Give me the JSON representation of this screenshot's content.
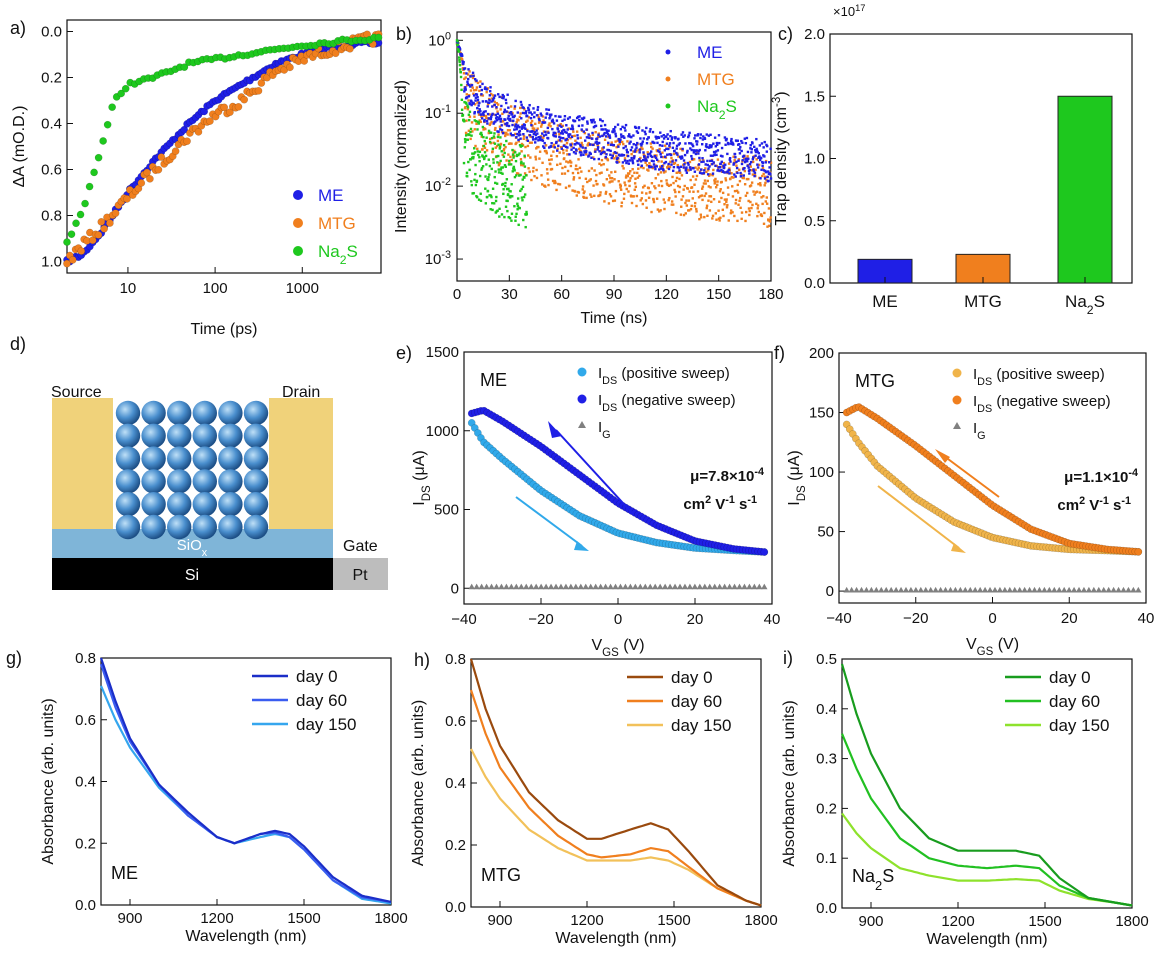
{
  "colors": {
    "ME": "#1f1fe6",
    "MTG": "#f07f1e",
    "Na2S": "#1ec81e",
    "ME_pos": "#31a9ea",
    "MTG_pos": "#f0b44a",
    "IG": "#808080",
    "ME_d0": "#1b2ec8",
    "ME_d60": "#3a5cf0",
    "ME_d150": "#35a6ee",
    "MTG_d0": "#9a4a0e",
    "MTG_d60": "#f07f1e",
    "MTG_d150": "#f2c15a",
    "Na_d0": "#189c1e",
    "Na_d60": "#22c022",
    "Na_d150": "#8ee22c",
    "gold": "#f0d27a",
    "sio": "#7fb5d8",
    "si": "#000000",
    "pt": "#bdbdbd"
  },
  "panels": {
    "a": {
      "label": "a)",
      "xlabel": "Time (ps)",
      "ylabel": "ΔA (mO.D.)",
      "xticks": [
        "10",
        "100",
        "1000"
      ],
      "yticks": [
        "0.0",
        "0.2",
        "0.4",
        "0.6",
        "0.8",
        "1.0"
      ],
      "legend": [
        "ME",
        "MTG",
        "Na",
        "2",
        "S"
      ]
    },
    "b": {
      "label": "b)",
      "xlabel": "Time (ns)",
      "ylabel": "Intensity (normalized)",
      "xticks": [
        "0",
        "30",
        "60",
        "90",
        "120",
        "150",
        "180"
      ],
      "ytick_base": "10",
      "yticks_exp": [
        "0",
        "-1",
        "-2",
        "-3"
      ],
      "legend": [
        "ME",
        "MTG",
        "Na",
        "2",
        "S"
      ]
    },
    "c": {
      "label": "c)",
      "ylabel": "Trap density (cm",
      "ylabel_sup": "-3",
      "ylabel_end": ")",
      "scale": "×10",
      "scale_exp": "17",
      "yticks": [
        "0.0",
        "0.5",
        "1.0",
        "1.5",
        "2.0"
      ],
      "categories": [
        "ME",
        "MTG",
        "Na"
      ],
      "cat_sub": "2",
      "cat_end": "S"
    },
    "d": {
      "label": "d)",
      "source": "Source",
      "drain": "Drain",
      "sio": "SiO",
      "sio_sub": "x",
      "gate": "Gate",
      "si": "Si",
      "pt": "Pt"
    },
    "e": {
      "label": "e)",
      "name": "ME",
      "xlabel": "V",
      "xlabel_sub": "GS",
      "xlabel_end": " (V)",
      "ylabel": "I",
      "ylabel_sub": "DS",
      "ylabel_end": " (μA)",
      "xticks": [
        "−40",
        "−20",
        "0",
        "20",
        "40"
      ],
      "yticks": [
        "0",
        "500",
        "1000",
        "1500"
      ],
      "legend": [
        "I",
        "DS",
        " (positive sweep)",
        " (negative sweep)",
        "G"
      ],
      "mu1": "μ=7.8×10",
      "mu1_exp": "-4",
      "mu2": "cm",
      "mu2_exp": "2",
      "mu2_mid": " V",
      "mu2_exp2": "-1",
      "mu2_end": " s",
      "mu2_exp3": "-1"
    },
    "f": {
      "label": "f)",
      "name": "MTG",
      "xlabel": "V",
      "xlabel_sub": "GS",
      "xlabel_end": " (V)",
      "ylabel": "I",
      "ylabel_sub": "DS",
      "ylabel_end": " (μA)",
      "xticks": [
        "−40",
        "−20",
        "0",
        "20",
        "40"
      ],
      "yticks": [
        "0",
        "50",
        "100",
        "150",
        "200"
      ],
      "legend": [
        "I",
        "DS",
        " (positive sweep)",
        " (negative sweep)",
        "G"
      ],
      "mu1": "μ=1.1×10",
      "mu1_exp": "-4",
      "mu2": "cm",
      "mu2_exp": "2",
      "mu2_mid": " V",
      "mu2_exp2": "-1",
      "mu2_end": " s",
      "mu2_exp3": "-1"
    },
    "g": {
      "label": "g)",
      "name": "ME",
      "xlabel": "Wavelength (nm)",
      "ylabel": "Absorbance (arb. units)",
      "xticks": [
        "900",
        "1200",
        "1500",
        "1800"
      ],
      "yticks": [
        "0.0",
        "0.2",
        "0.4",
        "0.6",
        "0.8"
      ],
      "legend": [
        "day 0",
        "day 60",
        "day 150"
      ]
    },
    "h": {
      "label": "h)",
      "name": "MTG",
      "xlabel": "Wavelength (nm)",
      "ylabel": "Absorbance (arb. units)",
      "xticks": [
        "900",
        "1200",
        "1500",
        "1800"
      ],
      "yticks": [
        "0.0",
        "0.2",
        "0.4",
        "0.6",
        "0.8"
      ],
      "legend": [
        "day 0",
        "day 60",
        "day 150"
      ]
    },
    "i": {
      "label": "i)",
      "name": "Na",
      "name_sub": "2",
      "name_end": "S",
      "xlabel": "Wavelength (nm)",
      "ylabel": "Absorbance (arb. units)",
      "xticks": [
        "900",
        "1200",
        "1500",
        "1800"
      ],
      "yticks": [
        "0.0",
        "0.1",
        "0.2",
        "0.3",
        "0.4",
        "0.5"
      ],
      "legend": [
        "day 0",
        "day 60",
        "day 150"
      ]
    }
  },
  "chart_data": [
    {
      "panel": "a",
      "type": "scatter",
      "xlabel": "Time (ps)",
      "ylabel": "ΔA (mO.D.)",
      "x_scale": "log",
      "xlim": [
        2,
        8000
      ],
      "ylim": [
        1.05,
        -0.05
      ],
      "y_inverted": true,
      "series": [
        {
          "name": "ME",
          "x": [
            2,
            3,
            5,
            10,
            20,
            50,
            100,
            200,
            500,
            1000,
            2000,
            5000,
            7000
          ],
          "y": [
            1.0,
            0.97,
            0.87,
            0.7,
            0.56,
            0.4,
            0.3,
            0.23,
            0.14,
            0.1,
            0.07,
            0.05,
            0.05
          ]
        },
        {
          "name": "MTG",
          "x": [
            2,
            3,
            5,
            10,
            20,
            50,
            100,
            200,
            500,
            1000,
            2000,
            5000,
            7000
          ],
          "y": [
            1.0,
            0.93,
            0.85,
            0.72,
            0.6,
            0.45,
            0.36,
            0.3,
            0.17,
            0.12,
            0.08,
            0.04,
            0.03
          ]
        },
        {
          "name": "Na2S",
          "x": [
            2,
            3,
            5,
            7,
            10,
            20,
            50,
            100,
            300,
            1000,
            3000,
            7000
          ],
          "y": [
            0.92,
            0.78,
            0.5,
            0.3,
            0.23,
            0.2,
            0.14,
            0.12,
            0.09,
            0.06,
            0.04,
            0.03
          ]
        }
      ]
    },
    {
      "panel": "b",
      "type": "scatter",
      "xlabel": "Time (ns)",
      "ylabel": "Intensity (normalized)",
      "y_scale": "log",
      "xlim": [
        0,
        180
      ],
      "ylim": [
        0.0005,
        1.3
      ],
      "series": [
        {
          "name": "ME",
          "x": [
            0,
            5,
            10,
            20,
            40,
            60,
            90,
            120,
            150,
            180
          ],
          "y": [
            1,
            0.3,
            0.2,
            0.13,
            0.08,
            0.06,
            0.045,
            0.035,
            0.03,
            0.025
          ]
        },
        {
          "name": "MTG",
          "x": [
            0,
            5,
            10,
            20,
            40,
            60,
            90,
            120,
            150,
            180
          ],
          "y": [
            1,
            0.2,
            0.13,
            0.08,
            0.045,
            0.03,
            0.02,
            0.015,
            0.012,
            0.01
          ]
        },
        {
          "name": "Na2S",
          "x": [
            0,
            3,
            5,
            10,
            20,
            30,
            40
          ],
          "y": [
            1,
            0.1,
            0.05,
            0.03,
            0.02,
            0.015,
            0.012
          ]
        }
      ]
    },
    {
      "panel": "c",
      "type": "bar",
      "ylabel": "Trap density (cm-3)",
      "scale": "×10^17",
      "categories": [
        "ME",
        "MTG",
        "Na2S"
      ],
      "values": [
        0.19,
        0.23,
        1.5
      ],
      "ylim": [
        0,
        2.0
      ]
    },
    {
      "panel": "e",
      "type": "scatter",
      "xlabel": "VGS (V)",
      "ylabel": "IDS (μA)",
      "xlim": [
        -40,
        40
      ],
      "ylim": [
        -100,
        1500
      ],
      "series": [
        {
          "name": "IDS (positive sweep)",
          "x": [
            -38,
            -35,
            -30,
            -20,
            -10,
            0,
            10,
            20,
            30,
            38
          ],
          "y": [
            1050,
            930,
            820,
            620,
            460,
            350,
            290,
            255,
            240,
            230
          ]
        },
        {
          "name": "IDS (negative sweep)",
          "x": [
            -38,
            -35,
            -30,
            -20,
            -10,
            0,
            10,
            20,
            30,
            38
          ],
          "y": [
            1110,
            1130,
            1060,
            900,
            720,
            540,
            400,
            300,
            250,
            230
          ]
        },
        {
          "name": "IG",
          "x": [
            -38,
            0,
            38
          ],
          "y": [
            10,
            10,
            10
          ]
        }
      ]
    },
    {
      "panel": "f",
      "type": "scatter",
      "xlabel": "VGS (V)",
      "ylabel": "IDS (μA)",
      "xlim": [
        -40,
        40
      ],
      "ylim": [
        -10,
        200
      ],
      "series": [
        {
          "name": "IDS (positive sweep)",
          "x": [
            -38,
            -35,
            -30,
            -20,
            -10,
            0,
            10,
            20,
            30,
            38
          ],
          "y": [
            140,
            125,
            105,
            78,
            58,
            45,
            38,
            35,
            34,
            33
          ]
        },
        {
          "name": "IDS (negative sweep)",
          "x": [
            -38,
            -35,
            -30,
            -20,
            -10,
            0,
            10,
            20,
            30,
            38
          ],
          "y": [
            150,
            155,
            145,
            122,
            97,
            72,
            52,
            40,
            35,
            33
          ]
        },
        {
          "name": "IG",
          "x": [
            -38,
            0,
            38
          ],
          "y": [
            1,
            1,
            1
          ]
        }
      ]
    },
    {
      "panel": "g",
      "type": "line",
      "xlabel": "Wavelength (nm)",
      "ylabel": "Absorbance (arb. units)",
      "xlim": [
        800,
        1800
      ],
      "ylim": [
        0,
        0.8
      ],
      "series": [
        {
          "name": "day 0",
          "x": [
            800,
            850,
            900,
            1000,
            1100,
            1200,
            1260,
            1350,
            1400,
            1450,
            1500,
            1600,
            1700,
            1800
          ],
          "y": [
            0.8,
            0.66,
            0.54,
            0.39,
            0.3,
            0.22,
            0.2,
            0.23,
            0.24,
            0.23,
            0.19,
            0.09,
            0.03,
            0.01
          ]
        },
        {
          "name": "day 60",
          "x": [
            800,
            850,
            900,
            1000,
            1100,
            1200,
            1260,
            1350,
            1400,
            1450,
            1500,
            1600,
            1700,
            1800
          ],
          "y": [
            0.78,
            0.64,
            0.53,
            0.39,
            0.29,
            0.22,
            0.2,
            0.23,
            0.235,
            0.22,
            0.18,
            0.08,
            0.025,
            0.01
          ]
        },
        {
          "name": "day 150",
          "x": [
            800,
            850,
            900,
            1000,
            1100,
            1200,
            1260,
            1350,
            1400,
            1450,
            1500,
            1600,
            1700,
            1800
          ],
          "y": [
            0.71,
            0.6,
            0.51,
            0.38,
            0.29,
            0.22,
            0.2,
            0.22,
            0.23,
            0.22,
            0.18,
            0.08,
            0.02,
            0.005
          ]
        }
      ]
    },
    {
      "panel": "h",
      "type": "line",
      "xlabel": "Wavelength (nm)",
      "ylabel": "Absorbance (arb. units)",
      "xlim": [
        800,
        1800
      ],
      "ylim": [
        0,
        0.8
      ],
      "series": [
        {
          "name": "day 0",
          "x": [
            800,
            850,
            900,
            1000,
            1100,
            1200,
            1250,
            1350,
            1420,
            1480,
            1550,
            1650,
            1750,
            1800
          ],
          "y": [
            0.8,
            0.64,
            0.52,
            0.37,
            0.28,
            0.22,
            0.22,
            0.25,
            0.27,
            0.25,
            0.18,
            0.07,
            0.02,
            0.005
          ]
        },
        {
          "name": "day 60",
          "x": [
            800,
            850,
            900,
            1000,
            1100,
            1200,
            1250,
            1350,
            1420,
            1480,
            1550,
            1650,
            1750,
            1800
          ],
          "y": [
            0.7,
            0.56,
            0.45,
            0.32,
            0.23,
            0.17,
            0.16,
            0.17,
            0.19,
            0.18,
            0.13,
            0.06,
            0.02,
            0.005
          ]
        },
        {
          "name": "day 150",
          "x": [
            800,
            850,
            900,
            1000,
            1100,
            1200,
            1250,
            1350,
            1420,
            1480,
            1550,
            1650,
            1750,
            1800
          ],
          "y": [
            0.51,
            0.42,
            0.35,
            0.25,
            0.19,
            0.15,
            0.15,
            0.15,
            0.16,
            0.15,
            0.12,
            0.06,
            0.02,
            0.005
          ]
        }
      ]
    },
    {
      "panel": "i",
      "type": "line",
      "xlabel": "Wavelength (nm)",
      "ylabel": "Absorbance (arb. units)",
      "xlim": [
        800,
        1800
      ],
      "ylim": [
        0,
        0.5
      ],
      "series": [
        {
          "name": "day 0",
          "x": [
            800,
            850,
            900,
            1000,
            1100,
            1200,
            1300,
            1400,
            1480,
            1550,
            1650,
            1750,
            1800
          ],
          "y": [
            0.49,
            0.39,
            0.31,
            0.2,
            0.14,
            0.115,
            0.115,
            0.115,
            0.105,
            0.06,
            0.02,
            0.01,
            0.005
          ]
        },
        {
          "name": "day 60",
          "x": [
            800,
            850,
            900,
            1000,
            1100,
            1200,
            1300,
            1400,
            1480,
            1550,
            1650,
            1750,
            1800
          ],
          "y": [
            0.35,
            0.28,
            0.22,
            0.14,
            0.1,
            0.085,
            0.08,
            0.085,
            0.08,
            0.045,
            0.02,
            0.01,
            0.005
          ]
        },
        {
          "name": "day 150",
          "x": [
            800,
            850,
            900,
            1000,
            1100,
            1200,
            1300,
            1400,
            1480,
            1550,
            1650,
            1750,
            1800
          ],
          "y": [
            0.19,
            0.15,
            0.12,
            0.08,
            0.065,
            0.055,
            0.055,
            0.058,
            0.055,
            0.035,
            0.018,
            0.01,
            0.005
          ]
        }
      ]
    }
  ]
}
